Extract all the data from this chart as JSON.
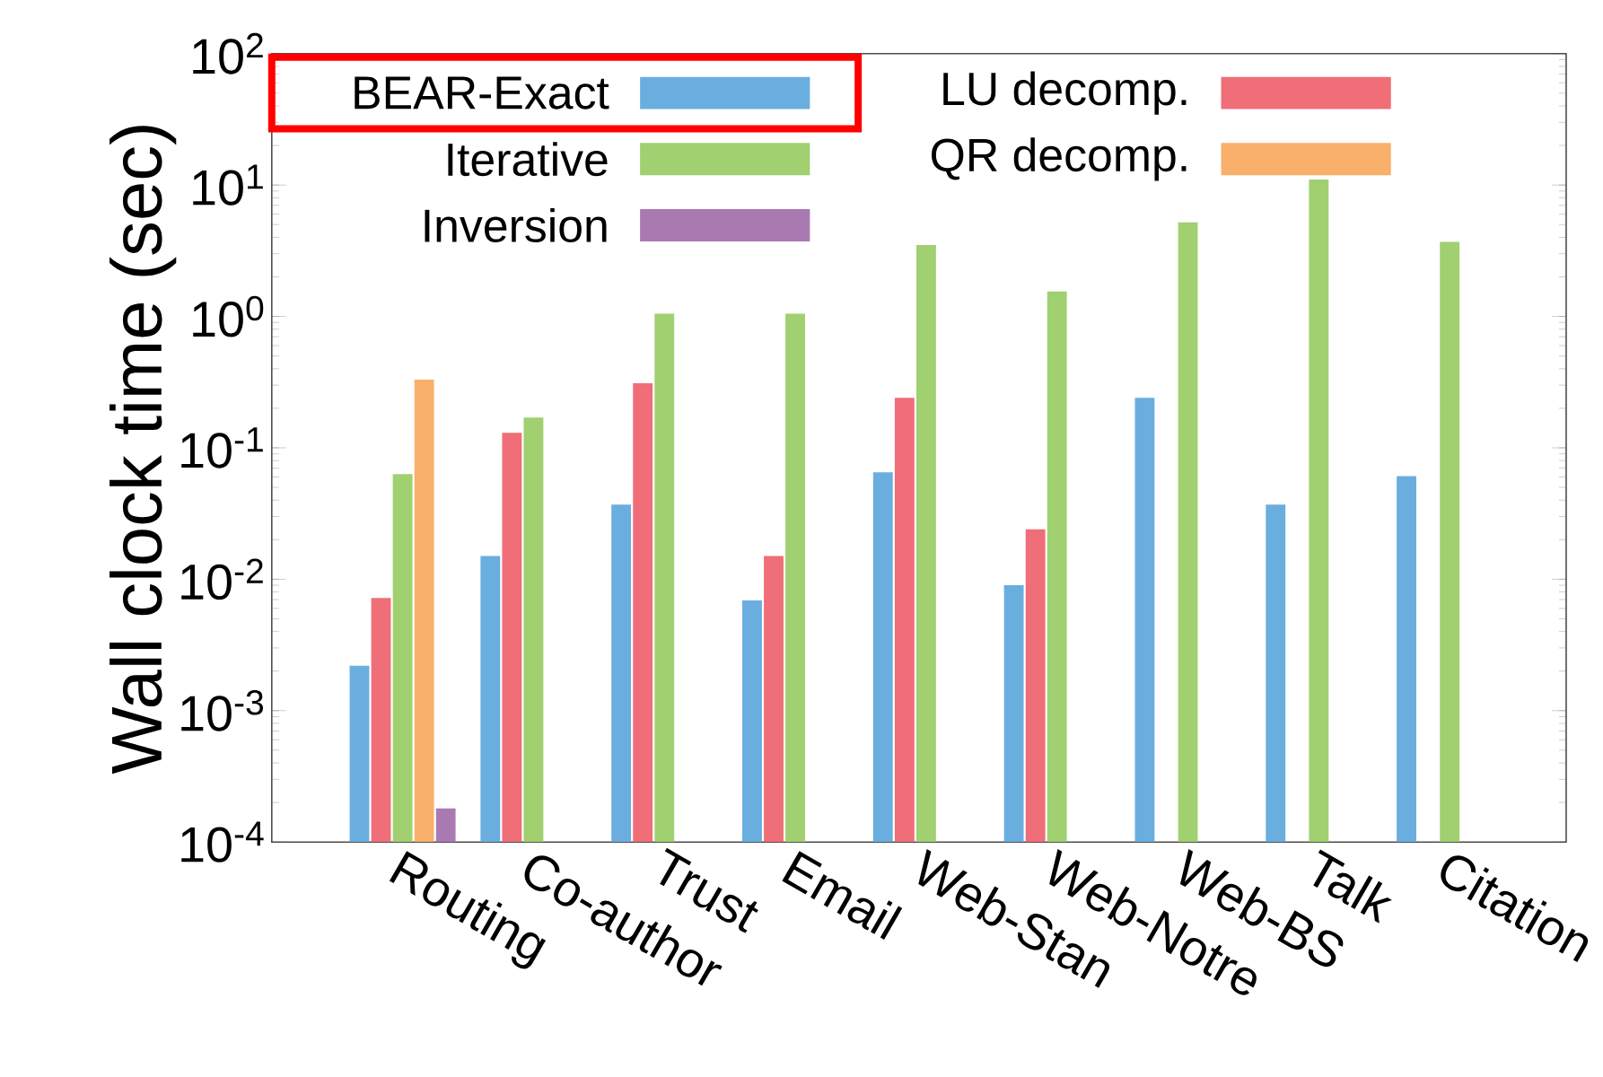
{
  "chart_data": {
    "type": "bar",
    "ylabel": "Wall clock time (sec)",
    "categories": [
      "Routing",
      "Co-author",
      "Trust",
      "Email",
      "Web-Stan",
      "Web-Notre",
      "Web-BS",
      "Talk",
      "Citation"
    ],
    "series": [
      {
        "name": "BEAR-Exact",
        "color": "#6aaedf",
        "values": [
          0.0022,
          0.015,
          0.037,
          0.0069,
          0.065,
          0.009,
          0.24,
          0.037,
          0.061
        ]
      },
      {
        "name": "LU decomp.",
        "color": "#f06e78",
        "values": [
          0.0072,
          0.13,
          0.31,
          0.015,
          0.24,
          0.024,
          null,
          null,
          null
        ]
      },
      {
        "name": "Iterative",
        "color": "#a0d070",
        "values": [
          0.063,
          0.17,
          1.05,
          1.05,
          3.5,
          1.55,
          5.2,
          11,
          3.7
        ]
      },
      {
        "name": "QR decomp.",
        "color": "#f8b06a",
        "values": [
          0.33,
          null,
          null,
          null,
          null,
          null,
          null,
          null,
          null
        ]
      },
      {
        "name": "Inversion",
        "color": "#a97ab2",
        "values": [
          0.00018,
          null,
          null,
          null,
          null,
          null,
          null,
          null,
          null
        ]
      }
    ],
    "log": true,
    "ylim": [
      0.0001,
      100
    ],
    "yticks": [
      {
        "value": 0.0001,
        "label": "10$^{-4}$"
      },
      {
        "value": 0.001,
        "label": "10$^{-3}$"
      },
      {
        "value": 0.01,
        "label": "10$^{-2}$"
      },
      {
        "value": 0.1,
        "label": "10$^{-1}$"
      },
      {
        "value": 1,
        "label": "10$^{0}$"
      },
      {
        "value": 10,
        "label": "10$^{1}$"
      },
      {
        "value": 100,
        "label": "10$^{2}$"
      }
    ],
    "legend": "top left",
    "grid": false
  }
}
